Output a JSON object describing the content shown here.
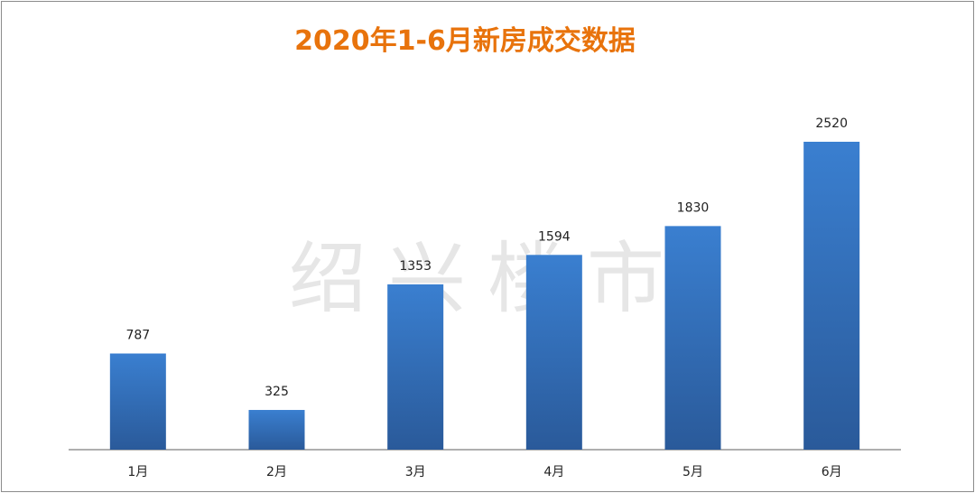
{
  "title": "2020年1-6月新房成交数据",
  "watermark": "绍兴楼市",
  "chart_data": {
    "type": "bar",
    "title": "2020年1-6月新房成交数据",
    "categories": [
      "1月",
      "2月",
      "3月",
      "4月",
      "5月",
      "6月"
    ],
    "values": [
      787,
      325,
      1353,
      1594,
      1830,
      2520
    ],
    "xlabel": "",
    "ylabel": "",
    "ylim": [
      0,
      3000
    ],
    "grid": false,
    "legend": "none",
    "bar_color_top": "#3a7fd0",
    "bar_color_bottom": "#2a5a9a",
    "title_color": "#e8730c"
  }
}
